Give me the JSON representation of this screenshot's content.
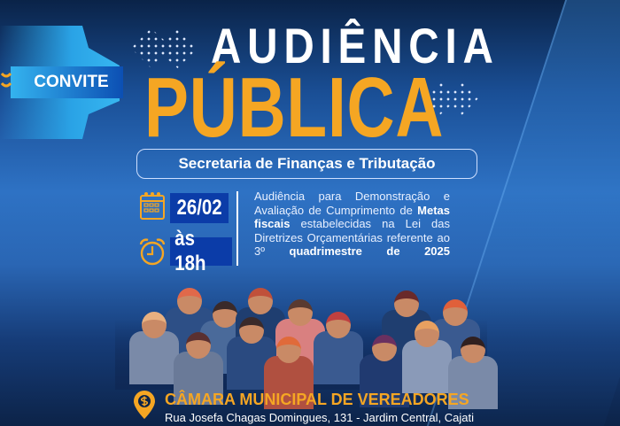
{
  "badge": {
    "label": "CONVITE"
  },
  "title": {
    "line1": "AUDIÊNCIA",
    "line2": "PÚBLICA"
  },
  "subtitle": "Secretaria de Finanças e Tributação",
  "event": {
    "date": "26/02",
    "time": "às 18h",
    "description": {
      "p1": "Audiência para Demonstração e Avaliação de Cumprimento de ",
      "b1": "Metas fiscais",
      "p2": " estabelecidas na Lei das Diretrizes Orçamentárias referente ao 3º ",
      "b2": "quadrimestre de 2025"
    }
  },
  "location": {
    "name": "CÂMARA MUNICIPAL DE VEREADORES",
    "address": "Rua Josefa Chagas Domingues, 131 - Jardim Central, Cajati"
  },
  "icons": [
    "calendar-icon",
    "alarm-clock-icon",
    "location-pin-icon"
  ],
  "colors": {
    "accent": "#f5a623",
    "navy": "#0a2348",
    "box": "#0b3ca8"
  }
}
